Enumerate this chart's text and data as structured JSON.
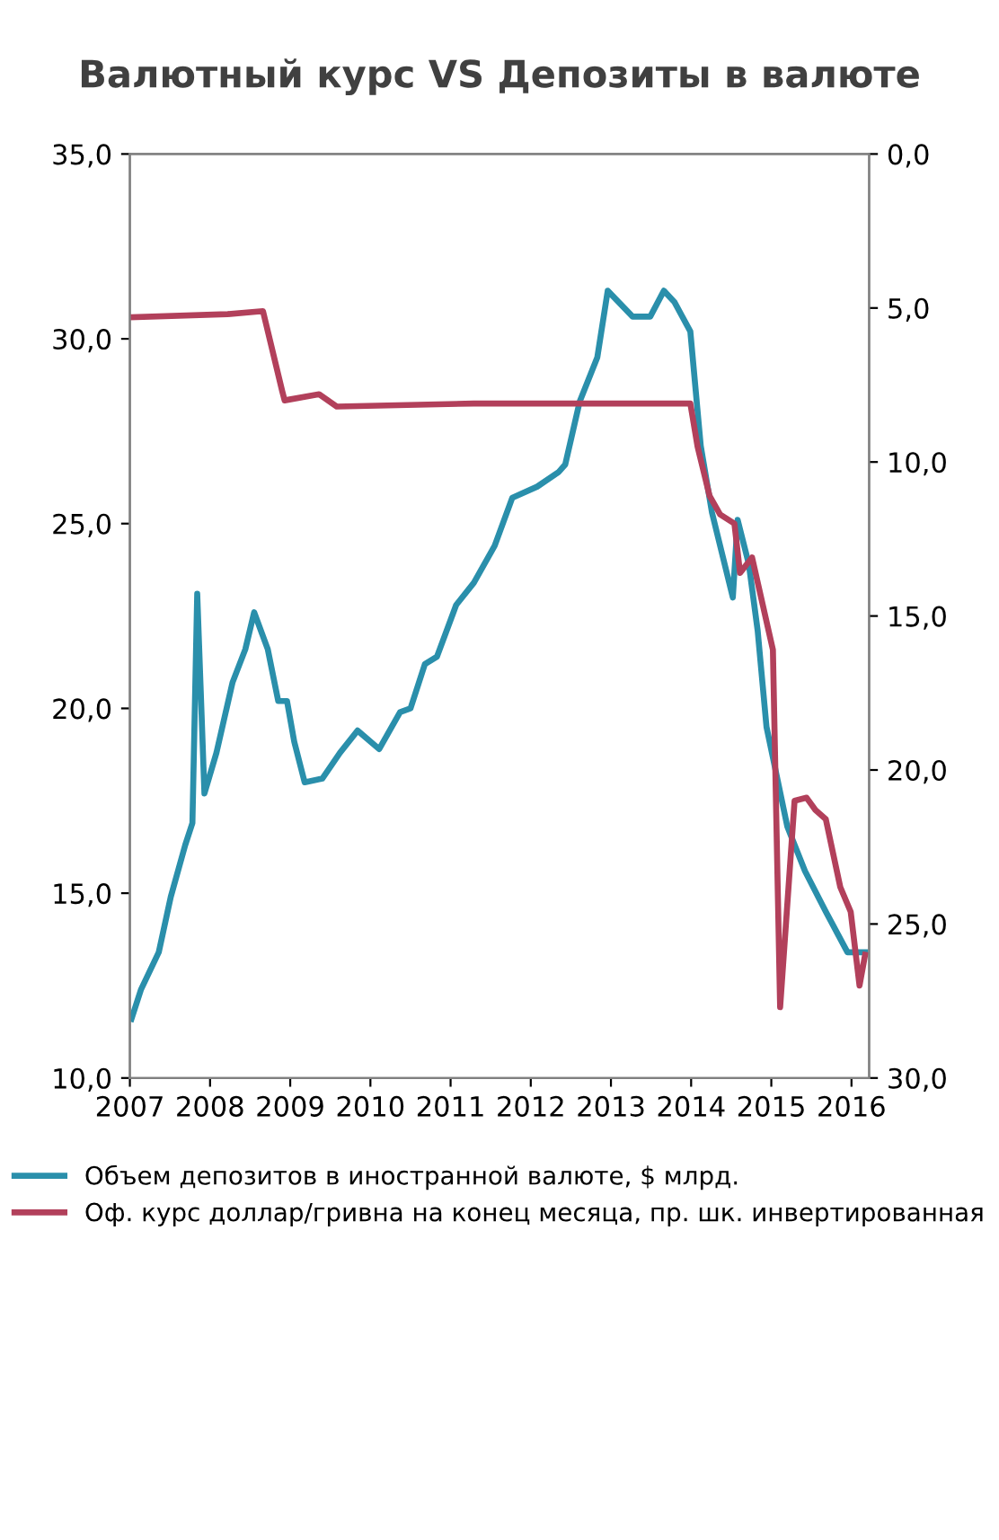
{
  "chart_data": {
    "type": "line",
    "title": "Валютный курс VS Депозиты в валюте",
    "series": [
      {
        "name": "Объем депозитов в иностранной валюте, $ млрд.",
        "color": "#2a8fab",
        "x": [
          2007.02,
          2007.14,
          2007.36,
          2007.51,
          2007.69,
          2007.78,
          2007.84,
          2007.93,
          2008.08,
          2008.28,
          2008.44,
          2008.55,
          2008.72,
          2008.85,
          2008.96,
          2009.05,
          2009.18,
          2009.4,
          2009.62,
          2009.84,
          2010.11,
          2010.37,
          2010.5,
          2010.68,
          2010.83,
          2011.07,
          2011.29,
          2011.55,
          2011.77,
          2012.08,
          2012.35,
          2012.43,
          2012.61,
          2012.83,
          2012.96,
          2013.27,
          2013.49,
          2013.66,
          2013.79,
          2013.99,
          2014.12,
          2014.26,
          2014.52,
          2014.58,
          2014.72,
          2014.83,
          2014.94,
          2015.2,
          2015.42,
          2015.68,
          2015.95,
          2016.17
        ],
        "values": [
          11.6,
          12.4,
          13.4,
          14.9,
          16.3,
          16.9,
          23.1,
          17.7,
          18.8,
          20.7,
          21.6,
          22.6,
          21.6,
          20.2,
          20.2,
          19.1,
          18.0,
          18.1,
          18.8,
          19.4,
          18.9,
          19.9,
          20.0,
          21.2,
          21.4,
          22.8,
          23.4,
          24.4,
          25.7,
          26.0,
          26.4,
          26.6,
          28.3,
          29.5,
          31.3,
          30.6,
          30.6,
          31.3,
          31.0,
          30.2,
          27.1,
          25.3,
          23.0,
          25.1,
          23.9,
          22.1,
          19.5,
          16.8,
          15.6,
          14.5,
          13.4,
          13.4
        ]
      },
      {
        "name": "Оф. курс доллар/гривна на конец месяца, пр. шк. инвертированная",
        "color": "#b2405b",
        "axis": "y2",
        "x": [
          2007.02,
          2008.22,
          2008.66,
          2008.9,
          2008.93,
          2009.36,
          2009.58,
          2011.29,
          2013.99,
          2014.08,
          2014.23,
          2014.36,
          2014.54,
          2014.61,
          2014.76,
          2015.02,
          2015.11,
          2015.29,
          2015.44,
          2015.55,
          2015.68,
          2015.86,
          2015.99,
          2016.1,
          2016.17
        ],
        "values": [
          5.3,
          5.2,
          5.1,
          7.7,
          8.0,
          7.8,
          8.2,
          8.1,
          8.1,
          9.5,
          11.1,
          11.7,
          12.0,
          13.6,
          13.1,
          16.1,
          27.7,
          21.0,
          20.9,
          21.3,
          21.6,
          23.8,
          24.6,
          27.0,
          26.0
        ]
      }
    ],
    "xlim": [
      2007,
      2016.22
    ],
    "xticks": [
      2007,
      2008,
      2009,
      2010,
      2011,
      2012,
      2013,
      2014,
      2015,
      2016
    ],
    "ylim": [
      10,
      35
    ],
    "yticks": [
      {
        "value": 10,
        "label": "10,0"
      },
      {
        "value": 15,
        "label": "15,0"
      },
      {
        "value": 20,
        "label": "20,0"
      },
      {
        "value": 25,
        "label": "25,0"
      },
      {
        "value": 30,
        "label": "30,0"
      },
      {
        "value": 35,
        "label": "35,0"
      }
    ],
    "y2lim": [
      30,
      0
    ],
    "y2ticks": [
      {
        "value": 30,
        "label": "30,0"
      },
      {
        "value": 25,
        "label": "25,0"
      },
      {
        "value": 20,
        "label": "20,0"
      },
      {
        "value": 15,
        "label": "15,0"
      },
      {
        "value": 10,
        "label": "10,0"
      },
      {
        "value": 5,
        "label": "5,0"
      },
      {
        "value": 0,
        "label": "0,0"
      }
    ],
    "legend": "bottom",
    "grid": false,
    "marker": "none",
    "line_style": "solid"
  }
}
